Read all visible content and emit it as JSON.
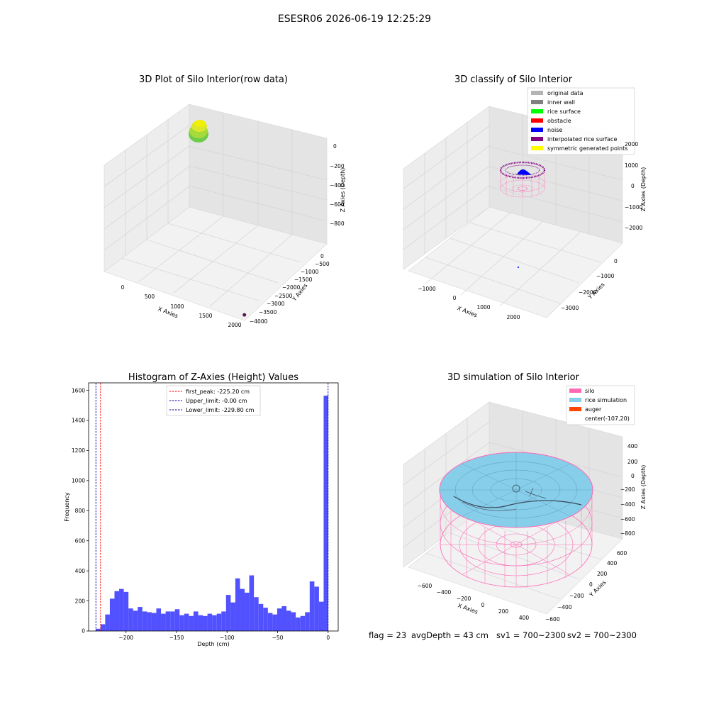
{
  "figure": {
    "title": "ESESR06 2026-06-19 12:25:29",
    "status": {
      "flag": "flag = 23",
      "avg_depth": "avgDepth = 43 cm",
      "sv1": "sv1 = 700~2300",
      "sv2": "sv2 = 700~2300"
    }
  },
  "colors": {
    "histogram_bar": "#5151ff",
    "first_peak_line": "#ff0000",
    "limit_line": "#0000aa",
    "raw_colormap": [
      "#6ecb4a",
      "#a6d93a",
      "#f0f000"
    ],
    "raw_outlier": "#5a1654",
    "silo": "#ff69b4",
    "rice_simulation": "#87ceeb",
    "auger": "#ff4500",
    "original_data": "#b4b4b4",
    "inner_wall": "#808080",
    "rice_surface": "#00ff00",
    "obstacle": "#ff0000",
    "noise": "#0000ff",
    "interpolated_rice_surface": "#800080",
    "symmetric_generated_points": "#ffff00"
  },
  "chart_data": [
    {
      "type": "scatter",
      "title": "3D Plot of Silo Interior(row data)",
      "xlabel": "X Axies",
      "ylabel": "Y Axies",
      "zlabel": "Z Axies (Depth)",
      "x_ticks": [
        "0",
        "500",
        "1000",
        "1500",
        "2000"
      ],
      "y_ticks": [
        "0",
        "−500",
        "−1000",
        "−1500",
        "−2000",
        "−2500",
        "−3000",
        "−3500",
        "−4000"
      ],
      "z_ticks": [
        "0",
        "−200",
        "−400",
        "−600",
        "−800"
      ],
      "xlim": [
        -200,
        2100
      ],
      "ylim": [
        -4100,
        300
      ],
      "zlim": [
        -900,
        20
      ],
      "outlier_point": {
        "x": 2050,
        "y": -3950,
        "z": -880
      }
    },
    {
      "type": "scatter",
      "title": "3D classify of Silo Interior",
      "xlabel": "X Axies",
      "ylabel": "Y Axies",
      "zlabel": "Z Axies (Depth)",
      "x_ticks": [
        "−1000",
        "0",
        "1000",
        "2000"
      ],
      "y_ticks": [
        "0",
        "−1000",
        "−2000",
        "−3000"
      ],
      "z_ticks": [
        "2000",
        "1000",
        "0",
        "−1000",
        "−2000"
      ],
      "xlim": [
        -1500,
        2600
      ],
      "ylim": [
        -3700,
        300
      ],
      "zlim": [
        -2600,
        2500
      ],
      "legend_loc": "upper right",
      "legend": [
        {
          "label": "original data",
          "color": "#b4b4b4"
        },
        {
          "label": "inner wall",
          "color": "#808080"
        },
        {
          "label": "rice surface",
          "color": "#00ff00"
        },
        {
          "label": "obstacle",
          "color": "#ff0000"
        },
        {
          "label": "noise",
          "color": "#0000ff"
        },
        {
          "label": "interpolated rice surface",
          "color": "#800080"
        },
        {
          "label": "symmetric generated points",
          "color": "#ffff00"
        }
      ]
    },
    {
      "type": "bar",
      "title": "Histogram of Z-Axies (Height) Values",
      "xlabel": "Depth (cm)",
      "ylabel": "Frequency",
      "xlim": [
        -237,
        10
      ],
      "ylim": [
        0,
        1650
      ],
      "x_ticks": [
        -200,
        -150,
        -100,
        -50,
        0
      ],
      "y_ticks": [
        0,
        200,
        400,
        600,
        800,
        1000,
        1200,
        1400,
        1600
      ],
      "bin_start": -229.8,
      "bin_width": 4.6,
      "values": [
        15,
        45,
        110,
        215,
        265,
        280,
        260,
        150,
        135,
        160,
        130,
        125,
        120,
        150,
        115,
        130,
        130,
        145,
        105,
        115,
        100,
        130,
        105,
        100,
        115,
        105,
        115,
        130,
        240,
        190,
        350,
        280,
        255,
        370,
        225,
        180,
        155,
        120,
        110,
        150,
        165,
        135,
        125,
        90,
        100,
        125,
        330,
        295,
        195,
        1565
      ],
      "vlines": [
        {
          "label": "first_peak: -225.20 cm",
          "value": -225.2,
          "color": "#ff0000"
        },
        {
          "label": "Upper_limit: -0.00 cm",
          "value": 0,
          "color": "#0000aa"
        },
        {
          "label": "Lower_limit: -229.80 cm",
          "value": -229.8,
          "color": "#0000aa"
        }
      ],
      "legend_loc": "upper center",
      "grid": false
    },
    {
      "type": "scatter",
      "title": "3D simulation of Silo Interior",
      "xlabel": "X Axies",
      "ylabel": "Y Axies",
      "zlabel": "Z Axies (Depth)",
      "x_ticks": [
        "−600",
        "−400",
        "−200",
        "0",
        "200",
        "400"
      ],
      "y_ticks": [
        "600",
        "400",
        "200",
        "0",
        "−200",
        "−400",
        "−600"
      ],
      "z_ticks": [
        "400",
        "200",
        "0",
        "−200",
        "−400",
        "−600",
        "−800"
      ],
      "xlim": [
        -700,
        500
      ],
      "ylim": [
        -700,
        700
      ],
      "zlim": [
        -950,
        500
      ],
      "legend_loc": "upper right",
      "legend": [
        {
          "label": "silo",
          "color": "#ff69b4"
        },
        {
          "label": "rice simulation",
          "color": "#87ceeb"
        },
        {
          "label": "auger",
          "color": "#ff4500"
        },
        {
          "label": "center(-107,20)",
          "color": ""
        }
      ]
    }
  ]
}
